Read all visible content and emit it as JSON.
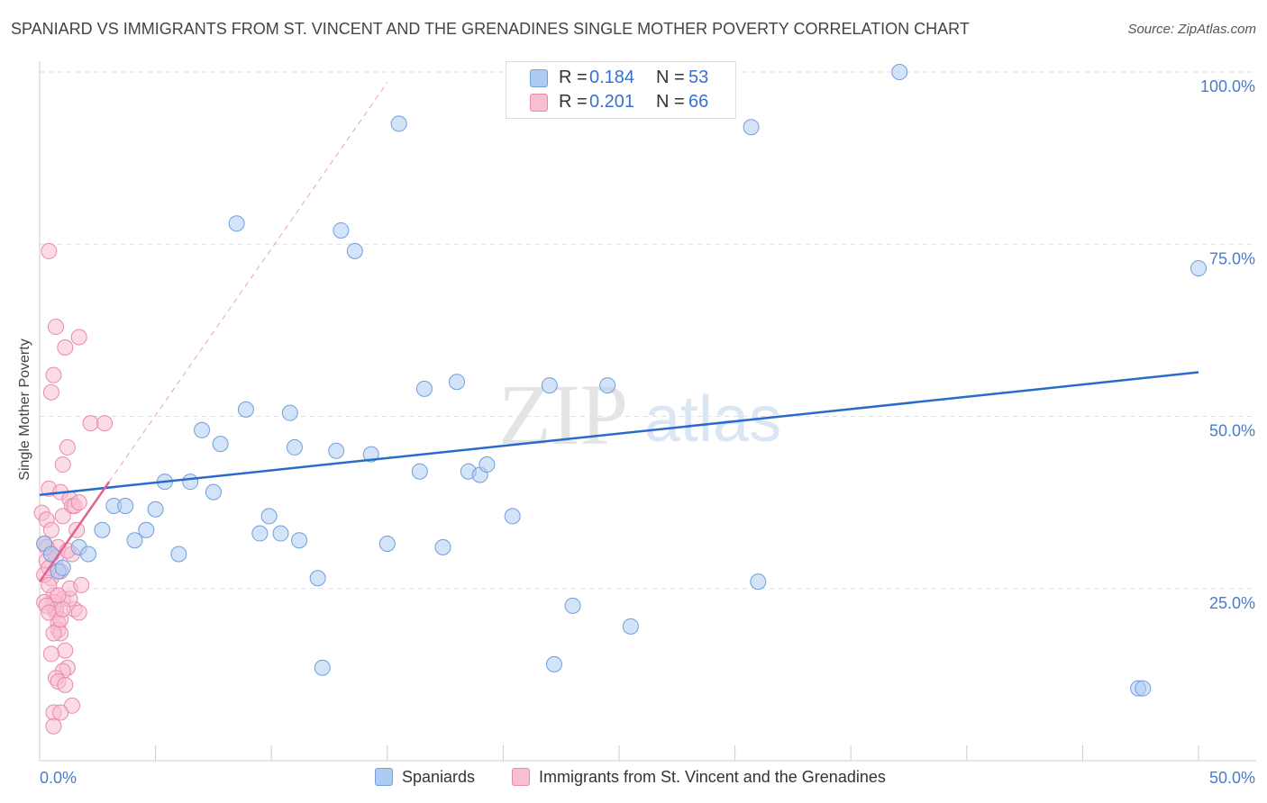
{
  "header": {
    "title": "SPANIARD VS IMMIGRANTS FROM ST. VINCENT AND THE GRENADINES SINGLE MOTHER POVERTY CORRELATION CHART",
    "source": "Source: ZipAtlas.com"
  },
  "watermark": {
    "zip": "ZIP",
    "atlas": "atlas"
  },
  "legend": {
    "rows": [
      {
        "r_label": "R =",
        "r_value": "0.184",
        "n_label": "N =",
        "n_value": "53"
      },
      {
        "r_label": "R =",
        "r_value": "0.201",
        "n_label": "N =",
        "n_value": "66"
      }
    ]
  },
  "bottom_legend": {
    "series1": "Spaniards",
    "series2": "Immigrants from St. Vincent and the Grenadines"
  },
  "colors": {
    "blue_fill": "#aeccf2",
    "blue_stroke": "#6f9fdc",
    "blue_line": "#2a6acb",
    "pink_fill": "#f7bfd1",
    "pink_stroke": "#e98aab",
    "pink_line": "#e0628e",
    "tick_text": "#4a7cc7",
    "grid": "#dddddd"
  },
  "chart_data": {
    "type": "scatter",
    "title": "SPANIARD VS IMMIGRANTS FROM ST. VINCENT AND THE GRENADINES SINGLE MOTHER POVERTY CORRELATION CHART",
    "ylabel": "Single Mother Poverty",
    "xlim": [
      0,
      50
    ],
    "ylim": [
      0,
      102
    ],
    "x_tick_labels": [
      "0.0%",
      "50.0%"
    ],
    "y_ticks": [
      25,
      50,
      75,
      100
    ],
    "y_tick_labels": [
      "25.0%",
      "50.0%",
      "75.0%",
      "100.0%"
    ],
    "grid": true,
    "legend_position": "top-center",
    "series": [
      {
        "name": "Spaniards",
        "R": 0.184,
        "N": 53,
        "trend": {
          "x": [
            0,
            50
          ],
          "y": [
            38.6,
            56.4
          ],
          "style": "solid"
        },
        "points": [
          [
            0.2,
            31.5
          ],
          [
            0.5,
            30.0
          ],
          [
            0.8,
            27.5
          ],
          [
            1.0,
            28.0
          ],
          [
            1.7,
            31.0
          ],
          [
            2.1,
            30.0
          ],
          [
            2.7,
            33.5
          ],
          [
            3.2,
            37.0
          ],
          [
            3.7,
            37.0
          ],
          [
            4.1,
            32.0
          ],
          [
            4.6,
            33.5
          ],
          [
            5.0,
            36.5
          ],
          [
            5.4,
            40.5
          ],
          [
            6.0,
            30.0
          ],
          [
            6.5,
            40.5
          ],
          [
            7.0,
            48.0
          ],
          [
            7.5,
            39.0
          ],
          [
            7.8,
            46.0
          ],
          [
            8.5,
            78.0
          ],
          [
            8.9,
            51.0
          ],
          [
            9.5,
            33.0
          ],
          [
            9.9,
            35.5
          ],
          [
            10.4,
            33.0
          ],
          [
            10.8,
            50.5
          ],
          [
            11.2,
            32.0
          ],
          [
            12.0,
            26.5
          ],
          [
            12.2,
            13.5
          ],
          [
            12.8,
            45.0
          ],
          [
            13.0,
            77.0
          ],
          [
            13.6,
            74.0
          ],
          [
            14.3,
            44.5
          ],
          [
            15.0,
            31.5
          ],
          [
            15.5,
            92.5
          ],
          [
            16.4,
            42.0
          ],
          [
            16.6,
            54.0
          ],
          [
            17.4,
            31.0
          ],
          [
            18.0,
            55.0
          ],
          [
            18.5,
            42.0
          ],
          [
            19.0,
            41.5
          ],
          [
            19.3,
            43.0
          ],
          [
            20.4,
            35.5
          ],
          [
            22.0,
            54.5
          ],
          [
            22.2,
            14.0
          ],
          [
            23.0,
            22.5
          ],
          [
            24.5,
            54.5
          ],
          [
            25.5,
            19.5
          ],
          [
            30.7,
            92.0
          ],
          [
            31.0,
            26.0
          ],
          [
            37.1,
            100.0
          ],
          [
            47.4,
            10.5
          ],
          [
            47.6,
            10.5
          ],
          [
            50.0,
            71.5
          ],
          [
            11.0,
            45.5
          ]
        ]
      },
      {
        "name": "Immigrants from St. Vincent and the Grenadines",
        "R": 0.201,
        "N": 66,
        "trend": {
          "x": [
            0,
            3.0
          ],
          "y": [
            26.0,
            40.5
          ],
          "style": "solid",
          "extended": {
            "x": [
              3.0,
              15.0
            ],
            "y": [
              40.5,
              98.5
            ],
            "style": "dashed"
          }
        },
        "points": [
          [
            0.1,
            36.0
          ],
          [
            0.2,
            31.5
          ],
          [
            0.3,
            35.0
          ],
          [
            0.4,
            39.5
          ],
          [
            0.5,
            30.0
          ],
          [
            0.5,
            26.5
          ],
          [
            0.6,
            24.0
          ],
          [
            0.6,
            22.5
          ],
          [
            0.7,
            21.5
          ],
          [
            0.8,
            20.0
          ],
          [
            0.9,
            27.5
          ],
          [
            1.0,
            23.5
          ],
          [
            0.4,
            74.0
          ],
          [
            0.5,
            53.5
          ],
          [
            0.6,
            56.0
          ],
          [
            0.7,
            63.0
          ],
          [
            1.1,
            60.0
          ],
          [
            1.7,
            61.5
          ],
          [
            1.0,
            43.0
          ],
          [
            1.2,
            45.5
          ],
          [
            0.9,
            39.0
          ],
          [
            1.3,
            38.0
          ],
          [
            1.4,
            37.0
          ],
          [
            1.6,
            33.5
          ],
          [
            1.4,
            30.0
          ],
          [
            1.0,
            35.5
          ],
          [
            0.8,
            31.0
          ],
          [
            0.5,
            33.5
          ],
          [
            0.3,
            29.0
          ],
          [
            0.2,
            27.0
          ],
          [
            0.4,
            25.5
          ],
          [
            0.6,
            23.0
          ],
          [
            0.7,
            22.0
          ],
          [
            0.8,
            19.0
          ],
          [
            0.9,
            18.5
          ],
          [
            1.1,
            16.0
          ],
          [
            0.5,
            15.5
          ],
          [
            1.2,
            13.5
          ],
          [
            1.0,
            13.0
          ],
          [
            0.7,
            12.0
          ],
          [
            0.8,
            11.5
          ],
          [
            1.1,
            11.0
          ],
          [
            1.4,
            8.0
          ],
          [
            0.6,
            7.0
          ],
          [
            0.9,
            7.0
          ],
          [
            0.6,
            5.0
          ],
          [
            1.5,
            22.0
          ],
          [
            1.7,
            21.5
          ],
          [
            1.3,
            23.5
          ],
          [
            1.3,
            25.0
          ],
          [
            1.8,
            25.5
          ],
          [
            2.2,
            49.0
          ],
          [
            2.8,
            49.0
          ],
          [
            1.5,
            37.0
          ],
          [
            1.7,
            37.5
          ],
          [
            0.2,
            23.0
          ],
          [
            0.3,
            22.5
          ],
          [
            0.4,
            21.5
          ],
          [
            0.6,
            18.5
          ],
          [
            0.9,
            20.5
          ],
          [
            1.0,
            22.0
          ],
          [
            0.3,
            31.0
          ],
          [
            0.7,
            29.5
          ],
          [
            1.2,
            30.5
          ],
          [
            0.4,
            28.0
          ],
          [
            0.8,
            24.0
          ]
        ]
      }
    ]
  }
}
